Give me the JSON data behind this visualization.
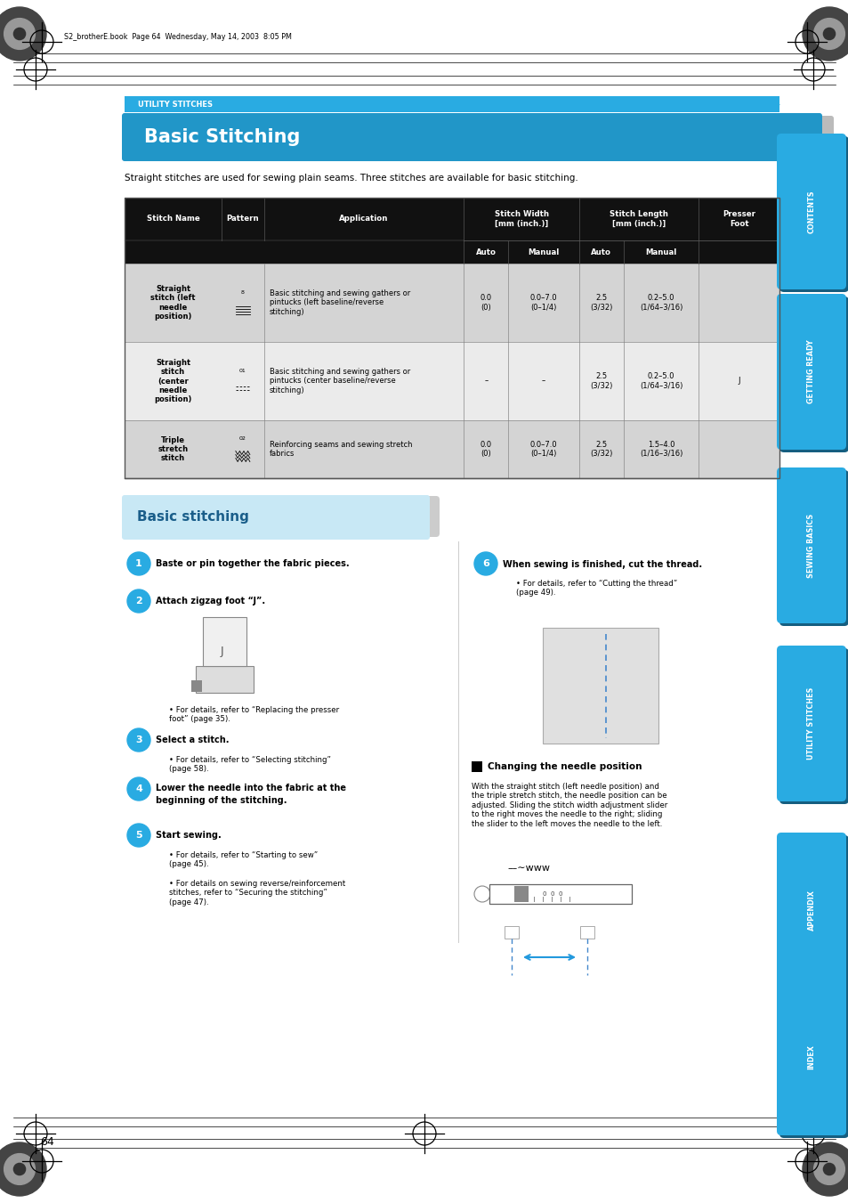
{
  "page_bg": "#ffffff",
  "blue_tab_color": "#29abe2",
  "blue_dark": "#1e7ab8",
  "utility_bar_color": "#29abe2",
  "title_bar_color": "#2196c8",
  "section2_bg": "#c8e8f5",
  "table_header_bg": "#111111",
  "table_row1_bg": "#d4d4d4",
  "table_row2_bg": "#ebebeb",
  "table_row3_bg": "#d4d4d4",
  "tab_shadow": "#155e80",
  "utility_bar_text": "UTILITY STITCHES",
  "main_title": "Basic Stitching",
  "subtitle": "Straight stitches are used for sewing plain seams. Three stitches are available for basic stitching.",
  "section2_title": "Basic stitching",
  "header_note": "S2_brotherE.book  Page 64  Wednesday, May 14, 2003  8:05 PM",
  "page_number": "64",
  "tab_labels": [
    "CONTENTS",
    "GETTING READY",
    "SEWING BASICS",
    "UTILITY STITCHES",
    "APPENDIX",
    "INDEX"
  ],
  "step1": "Baste or pin together the fabric pieces.",
  "step2": "Attach zigzag foot “J”.",
  "step2_note": "For details, refer to “Replacing the presser\nfoot” (page 35).",
  "step3": "Select a stitch.",
  "step3_note": "For details, refer to “Selecting stitching”\n(page 58).",
  "step4_line1": "Lower the needle into the fabric at the",
  "step4_line2": "beginning of the stitching.",
  "step5": "Start sewing.",
  "step5_note1": "For details, refer to “Starting to sew”\n(page 45).",
  "step5_note2": "For details on sewing reverse/reinforcement\nstitches, refer to “Securing the stitching”\n(page 47).",
  "step6": "When sewing is finished, cut the thread.",
  "step6_note": "For details, refer to “Cutting the thread”\n(page 49).",
  "needle_pos_title": "Changing the needle position",
  "needle_pos_text": "With the straight stitch (left needle position) and\nthe triple stretch stitch, the needle position can be\nadjusted. Sliding the stitch width adjustment slider\nto the right moves the needle to the right; sliding\nthe slider to the left moves the needle to the left.",
  "table_rows": [
    {
      "name": "Straight\nstitch (left\nneedle\nposition)",
      "pattern_num": "8",
      "application": "Basic stitching and sewing gathers or\npintucks (left baseline/reverse\nstitching)",
      "auto_width": "0.0\n(0)",
      "manual_width": "0.0–7.0\n(0–1/4)",
      "auto_length": "2.5\n(3/32)",
      "manual_length": "0.2–5.0\n(1/64–3/16)",
      "presser_foot": "",
      "bg": "#d4d4d4"
    },
    {
      "name": "Straight\nstitch\n(center\nneedle\nposition)",
      "pattern_num": "01",
      "application": "Basic stitching and sewing gathers or\npintucks (center baseline/reverse\nstitching)",
      "auto_width": "–",
      "manual_width": "–",
      "auto_length": "2.5\n(3/32)",
      "manual_length": "0.2–5.0\n(1/64–3/16)",
      "presser_foot": "J",
      "bg": "#ebebeb"
    },
    {
      "name": "Triple\nstretch\nstitch",
      "pattern_num": "02",
      "application": "Reinforcing seams and sewing stretch\nfabrics",
      "auto_width": "0.0\n(0)",
      "manual_width": "0.0–7.0\n(0–1/4)",
      "auto_length": "2.5\n(3/32)",
      "manual_length": "1.5–4.0\n(1/16–3/16)",
      "presser_foot": "",
      "bg": "#d4d4d4"
    }
  ]
}
